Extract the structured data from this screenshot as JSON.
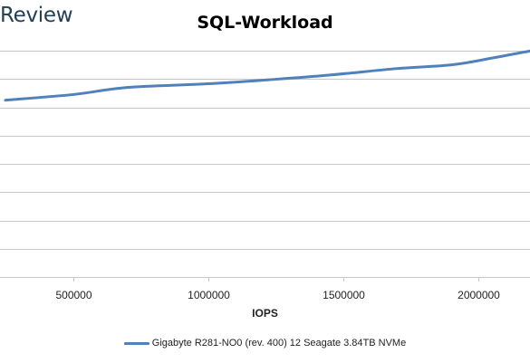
{
  "brand": {
    "text": "Review"
  },
  "chart_data": {
    "type": "line",
    "title": "SQL-Workload",
    "xlabel": "IOPS",
    "ylabel": "",
    "xlim": [
      230000,
      2190000
    ],
    "ylim": [
      0,
      8
    ],
    "grid": true,
    "legend_position": "bottom",
    "x_ticks": [
      500000,
      1000000,
      1500000,
      2000000
    ],
    "x_tick_labels": [
      "500000",
      "1000000",
      "1500000",
      "2000000"
    ],
    "y_ticks": [
      0,
      1,
      2,
      3,
      4,
      5,
      6,
      7,
      8
    ],
    "series": [
      {
        "name": "Gigabyte R281-NO0 (rev. 400) 12 Seagate 3.84TB NVMe",
        "color": "#4f81bd",
        "x": [
          250000,
          500000,
          700000,
          1000000,
          1250000,
          1450000,
          1700000,
          1900000,
          2050000,
          2190000
        ],
        "y": [
          6.25,
          6.45,
          6.7,
          6.83,
          6.99,
          7.14,
          7.37,
          7.5,
          7.74,
          7.99
        ]
      }
    ]
  }
}
